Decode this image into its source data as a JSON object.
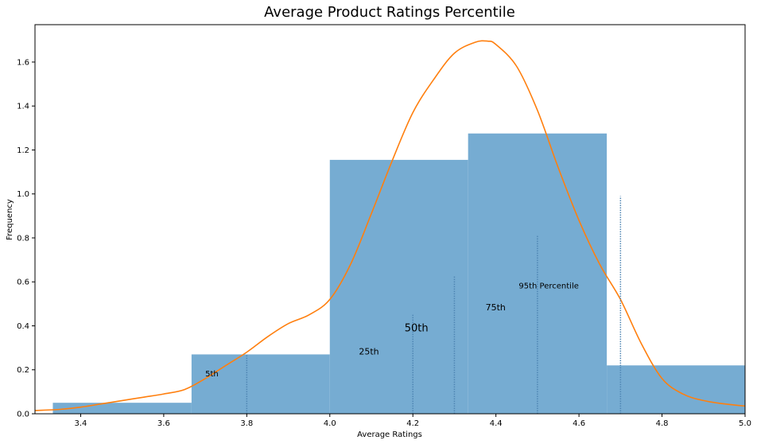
{
  "chart_data": {
    "type": "histogram",
    "title": "Average Product Ratings Percentile",
    "xlabel": "Average Ratings",
    "ylabel": "Frequency",
    "xlim": [
      3.29,
      5.0
    ],
    "ylim": [
      0,
      1.77
    ],
    "xticks": [
      "3.4",
      "3.6",
      "3.8",
      "4.0",
      "4.2",
      "4.4",
      "4.6",
      "4.8",
      "5.0"
    ],
    "yticks": [
      "0.0",
      "0.2",
      "0.4",
      "0.6",
      "0.8",
      "1.0",
      "1.2",
      "1.4",
      "1.6"
    ],
    "bar_color": "#76acd2",
    "kde_color": "#ff7f0e",
    "bins": [
      {
        "start": 3.333,
        "end": 3.667,
        "value": 0.05
      },
      {
        "start": 3.667,
        "end": 4.0,
        "value": 0.27
      },
      {
        "start": 4.0,
        "end": 4.333,
        "value": 1.155
      },
      {
        "start": 4.333,
        "end": 4.667,
        "value": 1.275
      },
      {
        "start": 4.667,
        "end": 5.0,
        "value": 0.22
      }
    ],
    "kde": {
      "x": [
        3.29,
        3.35,
        3.4,
        3.45,
        3.5,
        3.55,
        3.6,
        3.65,
        3.7,
        3.75,
        3.8,
        3.85,
        3.9,
        3.95,
        4.0,
        4.05,
        4.1,
        4.15,
        4.2,
        4.25,
        4.3,
        4.35,
        4.38,
        4.4,
        4.45,
        4.5,
        4.55,
        4.6,
        4.65,
        4.7,
        4.75,
        4.8,
        4.85,
        4.9,
        4.95,
        5.0
      ],
      "y": [
        0.015,
        0.02,
        0.03,
        0.045,
        0.06,
        0.075,
        0.09,
        0.11,
        0.16,
        0.22,
        0.28,
        0.35,
        0.41,
        0.45,
        0.52,
        0.68,
        0.91,
        1.15,
        1.37,
        1.52,
        1.64,
        1.69,
        1.695,
        1.68,
        1.58,
        1.38,
        1.12,
        0.88,
        0.68,
        0.52,
        0.32,
        0.16,
        0.09,
        0.06,
        0.045,
        0.035
      ]
    },
    "percentile_lines": [
      {
        "x": 3.8,
        "height": 0.27,
        "label": "5th",
        "label_x": 3.7,
        "label_y": 0.17,
        "size": 10
      },
      {
        "x": 4.2,
        "height": 0.45,
        "label": "25th",
        "label_x": 4.07,
        "label_y": 0.27,
        "size": 11
      },
      {
        "x": 4.3,
        "height": 0.63,
        "label": "50th",
        "label_x": 4.18,
        "label_y": 0.375,
        "size": 13
      },
      {
        "x": 4.5,
        "height": 0.81,
        "label": "75th",
        "label_x": 4.375,
        "label_y": 0.47,
        "size": 11
      },
      {
        "x": 4.7,
        "height": 0.99,
        "label": "95th Percentile",
        "label_x": 4.455,
        "label_y": 0.57,
        "size": 10
      }
    ]
  }
}
